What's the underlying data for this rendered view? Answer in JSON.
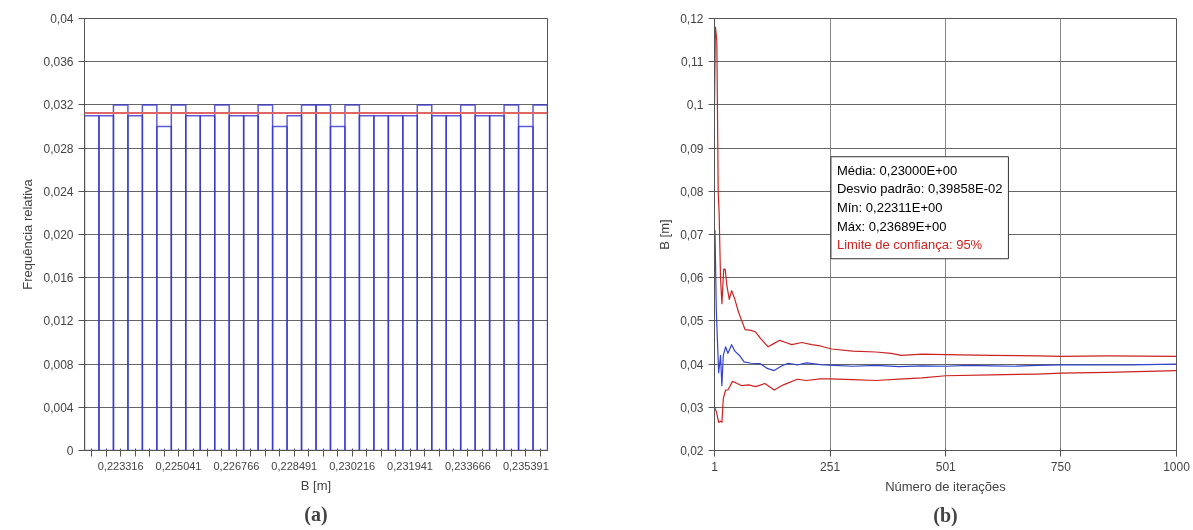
{
  "chart_data": [
    {
      "type": "histogram",
      "xlabel": "B [m]",
      "ylabel": "Frequência relativa",
      "color": "#3333cc",
      "bins": [
        0.2222379,
        0.2226691,
        0.2231004,
        0.2235316,
        0.2239629,
        0.2243941,
        0.2248253,
        0.2252565,
        0.2256878,
        0.226119,
        0.2265502,
        0.2269814,
        0.2274127,
        0.2278439,
        0.2282751,
        0.2287063,
        0.2291376,
        0.2295688,
        0.23,
        0.2304313,
        0.2308625,
        0.2312937,
        0.2317249,
        0.2321561,
        0.2325874,
        0.2330186,
        0.2334498,
        0.233881,
        0.2343123,
        0.2347435,
        0.2351747,
        0.2356059,
        0.2360372
      ],
      "values": [
        0.031,
        0.031,
        0.032,
        0.031,
        0.032,
        0.03,
        0.032,
        0.031,
        0.031,
        0.032,
        0.031,
        0.031,
        0.032,
        0.03,
        0.031,
        0.032,
        0.032,
        0.03,
        0.032,
        0.031,
        0.031,
        0.031,
        0.031,
        0.032,
        0.031,
        0.031,
        0.032,
        0.031,
        0.031,
        0.032,
        0.03,
        0.032
      ],
      "xlim": [
        0.2222379,
        0.2360372
      ],
      "xticks": [
        {
          "value": 0.2224535,
          "label": null
        },
        {
          "value": 0.2228848,
          "label": null
        },
        {
          "value": 0.223316,
          "label": "0,223316"
        },
        {
          "value": 0.2237473,
          "label": null
        },
        {
          "value": 0.2241785,
          "label": null
        },
        {
          "value": 0.2246098,
          "label": null
        },
        {
          "value": 0.225041,
          "label": "0,225041"
        },
        {
          "value": 0.2254723,
          "label": null
        },
        {
          "value": 0.2259035,
          "label": null
        },
        {
          "value": 0.2263348,
          "label": null
        },
        {
          "value": 0.226766,
          "label": "0,226766"
        },
        {
          "value": 0.2271973,
          "label": null
        },
        {
          "value": 0.2276285,
          "label": null
        },
        {
          "value": 0.2280598,
          "label": null
        },
        {
          "value": 0.228491,
          "label": "0,228491"
        },
        {
          "value": 0.2289223,
          "label": null
        },
        {
          "value": 0.2293535,
          "label": null
        },
        {
          "value": 0.2297848,
          "label": null
        },
        {
          "value": 0.230216,
          "label": "0,230216"
        },
        {
          "value": 0.2306473,
          "label": null
        },
        {
          "value": 0.2310785,
          "label": null
        },
        {
          "value": 0.2315098,
          "label": null
        },
        {
          "value": 0.231941,
          "label": "0,231941"
        },
        {
          "value": 0.2323723,
          "label": null
        },
        {
          "value": 0.2328035,
          "label": null
        },
        {
          "value": 0.2332348,
          "label": null
        },
        {
          "value": 0.233666,
          "label": "0,233666"
        },
        {
          "value": 0.2340973,
          "label": null
        },
        {
          "value": 0.2345285,
          "label": null
        },
        {
          "value": 0.2349598,
          "label": null
        },
        {
          "value": 0.235391,
          "label": "0,235391"
        },
        {
          "value": 0.2358223,
          "label": null
        }
      ],
      "ylim": [
        0,
        0.04
      ],
      "yticks": [
        0,
        {
          "value": 0.004,
          "label": "0,004"
        },
        {
          "value": 0.008,
          "label": "0,008"
        },
        {
          "value": 0.012,
          "label": "0,012"
        },
        {
          "value": 0.016,
          "label": "0,016"
        },
        {
          "value": 0.02,
          "label": "0,020"
        },
        {
          "value": 0.024,
          "label": "0,024"
        },
        {
          "value": 0.028,
          "label": "0,028"
        },
        {
          "value": 0.032,
          "label": "0,032"
        },
        {
          "value": 0.036,
          "label": "0,036"
        },
        {
          "value": 0.04,
          "label": "0,04"
        }
      ],
      "ref_lines": [
        {
          "axis": "y",
          "value": 0.03125,
          "color": "#e06666"
        }
      ],
      "grid": "y",
      "annotations": [
        "(a)"
      ]
    },
    {
      "type": "line",
      "xlabel": "Número de iterações",
      "ylabel": "B [m]",
      "series": [
        {
          "color": "#3344cc",
          "x": [
            2,
            5,
            10,
            14,
            17,
            20,
            25,
            30,
            38,
            45,
            55,
            65,
            80,
            100,
            115,
            130,
            145,
            160,
            180,
            200,
            230,
            260,
            300,
            350,
            400,
            450,
            501,
            550,
            600,
            650,
            700,
            750,
            800,
            900,
            1000
          ],
          "values": [
            0.071,
            0.052,
            0.038,
            0.042,
            0.035,
            0.042,
            0.044,
            0.0425,
            0.0445,
            0.043,
            0.042,
            0.0405,
            0.0402,
            0.0401,
            0.039,
            0.0385,
            0.0395,
            0.0402,
            0.0398,
            0.0403,
            0.0399,
            0.0397,
            0.0395,
            0.0397,
            0.0394,
            0.0396,
            0.0395,
            0.0397,
            0.0396,
            0.0395,
            0.0397,
            0.0398,
            0.0398,
            0.0398,
            0.04
          ]
        },
        {
          "name": "Limite de confiança: 95%",
          "color": "#cc2222",
          "x": [
            1,
            3,
            6,
            9,
            11,
            14,
            17,
            21,
            24,
            28,
            33,
            38,
            45,
            53,
            60,
            67,
            80,
            89,
            100,
            117,
            130,
            142,
            155,
            168,
            190,
            211,
            230,
            254,
            300,
            350,
            383,
            405,
            450,
            501,
            600,
            700,
            750,
            850,
            1000
          ],
          "values": [
            0.1,
            0.118,
            0.115,
            0.08,
            0.075,
            0.06,
            0.054,
            0.062,
            0.062,
            0.058,
            0.055,
            0.057,
            0.055,
            0.052,
            0.05,
            0.048,
            0.0478,
            0.0475,
            0.046,
            0.044,
            0.0448,
            0.0455,
            0.045,
            0.0445,
            0.045,
            0.0445,
            0.0442,
            0.0435,
            0.043,
            0.0428,
            0.0425,
            0.042,
            0.0423,
            0.0422,
            0.042,
            0.0419,
            0.0418,
            0.0419,
            0.0418
          ]
        },
        {
          "color": "#cc2222",
          "x": [
            1,
            5,
            10,
            14,
            17,
            20,
            25,
            30,
            40,
            50,
            60,
            75,
            90,
            110,
            130,
            150,
            180,
            200,
            230,
            251,
            300,
            350,
            400,
            450,
            501,
            600,
            700,
            750,
            850,
            1000
          ],
          "values": [
            0.03,
            0.029,
            0.0265,
            0.0268,
            0.0265,
            0.032,
            0.034,
            0.034,
            0.036,
            0.0355,
            0.035,
            0.0352,
            0.0348,
            0.0355,
            0.034,
            0.0352,
            0.0365,
            0.0362,
            0.0366,
            0.0366,
            0.0364,
            0.0362,
            0.0365,
            0.0368,
            0.0373,
            0.0375,
            0.0377,
            0.0379,
            0.0381,
            0.0385
          ]
        }
      ],
      "xlim": [
        1,
        1000
      ],
      "xticks": [
        1,
        251,
        501,
        750,
        1000
      ],
      "ylim": [
        0.02,
        0.12
      ],
      "yticks": [
        {
          "value": 0.02,
          "label": "0,02"
        },
        {
          "value": 0.03,
          "label": "0,03"
        },
        {
          "value": 0.04,
          "label": "0,04"
        },
        {
          "value": 0.05,
          "label": "0,05"
        },
        {
          "value": 0.06,
          "label": "0,06"
        },
        {
          "value": 0.07,
          "label": "0,07"
        },
        {
          "value": 0.08,
          "label": "0,08"
        },
        {
          "value": 0.09,
          "label": "0,09"
        },
        {
          "value": 0.1,
          "label": "0,1"
        },
        {
          "value": 0.11,
          "label": "0,11"
        },
        {
          "value": 0.12,
          "label": "0,12"
        }
      ],
      "grid": true,
      "marker": "none",
      "line_style": "solid",
      "annotations": [
        "Média: 0,23000E+00",
        "Desvio padrão: 0,39858E-02",
        "Mín: 0,22311E+00",
        "Máx: 0,23689E+00",
        "(b)"
      ]
    }
  ]
}
